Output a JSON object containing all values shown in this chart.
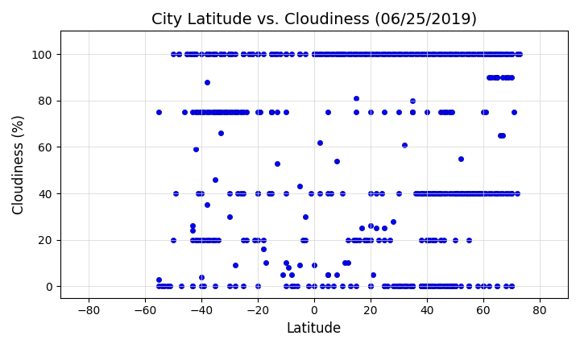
{
  "title": "City Latitude vs. Cloudiness (06/25/2019)",
  "xlabel": "Latitude",
  "ylabel": "Cloudiness (%)",
  "xlim": [
    -90,
    90
  ],
  "ylim": [
    -5,
    110
  ],
  "xticks": [
    -80,
    -60,
    -40,
    -20,
    0,
    20,
    40,
    60,
    80
  ],
  "yticks": [
    0,
    20,
    40,
    60,
    80,
    100
  ],
  "marker_color": "blue",
  "marker_size": 20,
  "marker_edge_color": "darkblue",
  "marker_edge_width": 0.5,
  "grid": true,
  "scatter_x": [
    -55,
    -55,
    -55,
    -54,
    -53,
    -52,
    -51,
    -50,
    -49,
    -48,
    -47,
    -46,
    -45,
    -44,
    -43,
    -42,
    -41,
    -40,
    -40,
    -40,
    -39,
    -38,
    -37,
    -36,
    -35,
    -34,
    -33,
    -32,
    -31,
    -30,
    -30,
    -29,
    -28,
    -27,
    -26,
    -25,
    -24,
    -23,
    -22,
    -21,
    -20,
    -20,
    -20,
    -19,
    -18,
    -17,
    -16,
    -15,
    -14,
    -13,
    -12,
    -11,
    -10,
    -9,
    -8,
    -7,
    -6,
    -5,
    -4,
    -3,
    -2,
    -1,
    0,
    1,
    2,
    3,
    4,
    5,
    6,
    7,
    8,
    9,
    10,
    11,
    12,
    13,
    14,
    15,
    16,
    17,
    18,
    19,
    20,
    20,
    20,
    21,
    22,
    23,
    24,
    25,
    26,
    27,
    28,
    29,
    30,
    31,
    32,
    33,
    34,
    35,
    36,
    37,
    38,
    39,
    40,
    40,
    40,
    41,
    42,
    43,
    44,
    45,
    46,
    47,
    48,
    49,
    50,
    51,
    52,
    53,
    54,
    55,
    56,
    57,
    58,
    59,
    60,
    61,
    62,
    63,
    64,
    65,
    66,
    67,
    68,
    69,
    70,
    71,
    72,
    73,
    -43,
    -43,
    -43,
    -43,
    -35,
    -35,
    -35,
    -30,
    -30,
    -25,
    -25,
    -20,
    -20,
    -15,
    -15,
    -10,
    -10,
    0,
    0,
    5,
    5,
    10,
    10,
    15,
    15,
    20,
    20,
    25,
    25,
    30,
    30,
    35,
    35,
    40,
    40,
    45,
    45,
    50,
    50,
    55,
    55,
    60,
    60,
    65,
    65,
    70,
    70,
    -43,
    -43,
    -40,
    -40,
    -38,
    -35,
    -33,
    -30,
    -28,
    -25,
    -22,
    -20,
    -18,
    -15,
    -13,
    -10,
    -8,
    -5,
    -3,
    0,
    2,
    5,
    8,
    10,
    12,
    15,
    18,
    20,
    22,
    25,
    28,
    30,
    32,
    35,
    38,
    40,
    42,
    45,
    48,
    50,
    52,
    55,
    58,
    60,
    62,
    65,
    68,
    70,
    72,
    -42,
    -38,
    -35,
    -30,
    -25,
    -20,
    -15,
    -10,
    -5,
    0,
    5,
    10,
    15,
    20,
    25,
    30,
    35,
    40,
    45,
    50,
    55,
    60,
    65,
    70,
    38,
    38,
    38,
    38,
    38,
    39,
    39,
    39,
    40,
    40,
    40,
    40,
    41,
    41,
    41,
    42,
    42,
    42,
    43,
    43,
    44,
    44,
    45,
    45,
    46,
    46,
    47,
    47,
    48,
    48,
    49,
    49,
    50,
    50,
    -43,
    -42,
    -40,
    -38,
    -35,
    -33,
    -30,
    -28,
    -25,
    -22,
    -20,
    -18,
    -15,
    -13,
    -10,
    -8,
    -5,
    -3,
    0,
    2,
    5,
    8,
    10,
    13,
    15,
    18,
    20,
    22,
    25,
    28,
    30,
    32,
    35,
    38,
    40,
    42,
    45,
    48,
    50,
    52,
    55,
    58,
    60,
    62,
    65,
    68,
    70,
    60,
    61,
    62,
    63,
    64,
    65,
    66,
    67,
    68,
    -43,
    -42,
    -41,
    -40,
    -39,
    -38,
    -37,
    -36,
    -35,
    -34,
    -33,
    -32,
    -31,
    -30,
    -29,
    -28,
    -27,
    -26,
    -25,
    -24,
    0,
    1,
    2,
    3,
    4,
    5,
    6,
    7,
    8,
    9,
    10,
    11,
    12,
    13,
    14,
    15,
    16,
    17,
    18,
    19,
    20,
    21,
    22,
    23,
    24,
    25,
    26,
    27,
    28,
    29,
    30,
    31,
    32,
    33,
    34,
    35,
    36,
    37,
    38,
    39,
    40,
    41,
    42,
    43,
    44,
    45,
    46,
    47,
    48,
    49,
    50,
    51,
    52,
    53,
    54,
    55,
    56,
    57,
    58,
    59,
    60,
    61,
    62,
    63,
    64,
    65,
    66,
    67,
    68,
    69,
    70,
    -50,
    -48,
    -45,
    -43,
    -40,
    -38,
    -35,
    -33,
    -30,
    -28,
    -43,
    -42,
    -41,
    -40,
    -39,
    -38,
    -37,
    -36,
    -35,
    -34,
    40,
    41,
    42,
    43,
    44,
    45,
    46,
    47,
    48,
    49,
    50,
    51,
    52,
    53,
    54,
    55,
    56,
    57,
    58,
    59,
    60,
    61,
    62,
    63,
    64,
    65,
    66,
    67,
    68,
    69,
    70
  ],
  "scatter_y": [
    0,
    3,
    75,
    0,
    0,
    0,
    0,
    20,
    40,
    100,
    0,
    75,
    100,
    100,
    100,
    100,
    40,
    20,
    0,
    4,
    0,
    100,
    100,
    100,
    100,
    75,
    75,
    100,
    75,
    40,
    100,
    100,
    0,
    40,
    40,
    40,
    20,
    100,
    100,
    20,
    20,
    0,
    40,
    75,
    20,
    10,
    40,
    40,
    100,
    75,
    100,
    5,
    0,
    8,
    0,
    0,
    0,
    9,
    20,
    20,
    0,
    40,
    100,
    100,
    40,
    0,
    100,
    0,
    40,
    0,
    5,
    100,
    100,
    10,
    20,
    0,
    20,
    20,
    20,
    25,
    20,
    20,
    20,
    0,
    40,
    5,
    25,
    20,
    40,
    20,
    0,
    20,
    0,
    0,
    0,
    0,
    0,
    0,
    0,
    0,
    40,
    40,
    40,
    40,
    40,
    20,
    0,
    40,
    40,
    40,
    40,
    75,
    75,
    75,
    75,
    75,
    40,
    40,
    40,
    40,
    40,
    40,
    40,
    40,
    40,
    40,
    75,
    75,
    90,
    90,
    90,
    90,
    65,
    65,
    90,
    90,
    90,
    75,
    100,
    100,
    100,
    100,
    0,
    0,
    100,
    75,
    0,
    100,
    0,
    100,
    0,
    100,
    75,
    100,
    75,
    100,
    40,
    100,
    100,
    100,
    40,
    100,
    40,
    75,
    20,
    75,
    0,
    75,
    0,
    75,
    0,
    75,
    0,
    75,
    0,
    40,
    0,
    40,
    0,
    40,
    0,
    40,
    0,
    40,
    0,
    40,
    0,
    26,
    24,
    75,
    40,
    35,
    46,
    66,
    30,
    9,
    20,
    100,
    40,
    16,
    75,
    53,
    10,
    5,
    43,
    30,
    9,
    62,
    5,
    54,
    100,
    10,
    81,
    20,
    26,
    40,
    25,
    28,
    40,
    61,
    80,
    40,
    40,
    100,
    20,
    100,
    20,
    55,
    20,
    40,
    100,
    100,
    100,
    100,
    100,
    40,
    59,
    88,
    75,
    100,
    100,
    100,
    75,
    100,
    100,
    100,
    75,
    100,
    100,
    100,
    100,
    100,
    75,
    100,
    100,
    100,
    100,
    100,
    100,
    100,
    0,
    0,
    0,
    0,
    20,
    0,
    0,
    0,
    0,
    0,
    0,
    20,
    0,
    0,
    20,
    0,
    0,
    20,
    0,
    20,
    0,
    0,
    0,
    0,
    0,
    20,
    0,
    0,
    0,
    0,
    0,
    0,
    0,
    0,
    100,
    100,
    75,
    100,
    100,
    100,
    100,
    75,
    100,
    100,
    100,
    100,
    100,
    100,
    75,
    100,
    100,
    100,
    0,
    100,
    5,
    100,
    0,
    100,
    0,
    100,
    20,
    100,
    0,
    100,
    0,
    0,
    0,
    0,
    0,
    0,
    0,
    0,
    0,
    0,
    0,
    0,
    0,
    0,
    0,
    0,
    0,
    100,
    100,
    100,
    100,
    100,
    90,
    100,
    90,
    100,
    75,
    75,
    75,
    75,
    75,
    75,
    75,
    75,
    75,
    75,
    75,
    75,
    75,
    75,
    75,
    75,
    75,
    75,
    75,
    75,
    100,
    100,
    100,
    100,
    100,
    100,
    100,
    100,
    100,
    100,
    100,
    100,
    100,
    100,
    100,
    100,
    100,
    100,
    100,
    100,
    100,
    100,
    100,
    100,
    100,
    100,
    100,
    100,
    100,
    100,
    100,
    100,
    100,
    100,
    100,
    100,
    100,
    100,
    100,
    100,
    100,
    100,
    100,
    100,
    100,
    100,
    100,
    100,
    100,
    100,
    100,
    100,
    100,
    100,
    100,
    100,
    100,
    100,
    100,
    100,
    100,
    100,
    100,
    100,
    100,
    100,
    100,
    100,
    100,
    100,
    100,
    100,
    100,
    100,
    100,
    100,
    100,
    100,
    100,
    100,
    100,
    20,
    20,
    20,
    20,
    20,
    20,
    20,
    20,
    20,
    20,
    40,
    40,
    40,
    40,
    40,
    40,
    40,
    40,
    40,
    40,
    40,
    40,
    40,
    40,
    40,
    40,
    40,
    40,
    40,
    40,
    40,
    40,
    40,
    40,
    40,
    40,
    40,
    40,
    40,
    40,
    40
  ]
}
